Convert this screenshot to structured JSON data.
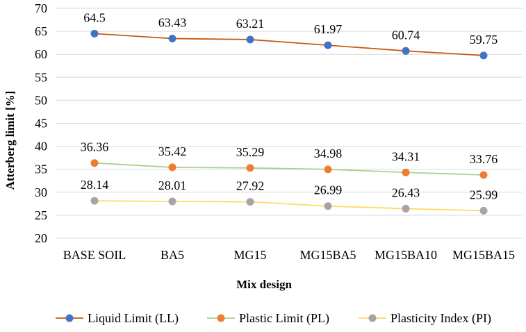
{
  "chart_data": {
    "type": "line",
    "categories": [
      "BASE SOIL",
      "BA5",
      "MG15",
      "MG15BA5",
      "MG15BA10",
      "MG15BA15"
    ],
    "series": [
      {
        "name": "Liquid Limit (LL)",
        "values": [
          64.5,
          63.43,
          63.21,
          61.97,
          60.74,
          59.75
        ],
        "line_color": "#c55a11",
        "marker_color": "#4472c4"
      },
      {
        "name": "Plastic Limit (PL)",
        "values": [
          36.36,
          35.42,
          35.29,
          34.98,
          34.31,
          33.76
        ],
        "line_color": "#a9d18e",
        "marker_color": "#ed7d31"
      },
      {
        "name": "Plasticity Index (PI)",
        "values": [
          28.14,
          28.01,
          27.92,
          26.99,
          26.43,
          25.99
        ],
        "line_color": "#ffd966",
        "marker_color": "#a5a5a5"
      }
    ],
    "xlabel": "Mix design",
    "ylabel": "Atterberg  limit [%]",
    "ylim": [
      20,
      70
    ],
    "yticks": [
      20,
      25,
      30,
      35,
      40,
      45,
      50,
      55,
      60,
      65,
      70
    ],
    "grid": "horizontal",
    "legend_position": "bottom"
  }
}
